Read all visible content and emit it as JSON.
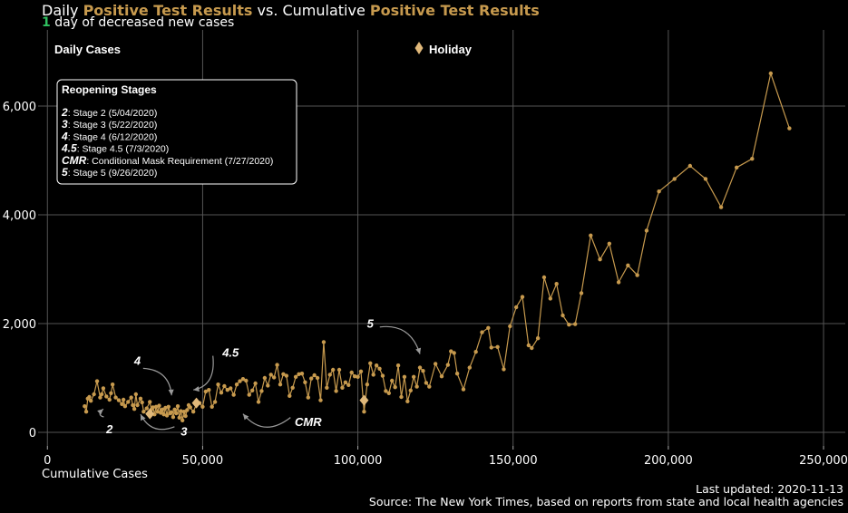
{
  "title": {
    "prefix": "Daily ",
    "highlight1": "Positive Test Results",
    "middle": " vs. Cumulative ",
    "highlight2": "Positive Test Results"
  },
  "subtitle": {
    "count": "1",
    "text": " day of decreased new cases"
  },
  "footer": {
    "updated": "Last updated: 2020-11-13",
    "source": "Source: The New York Times, based on reports from state and local health agencies"
  },
  "colors": {
    "series": "#c79a4e",
    "holiday": "#e0b87a",
    "accent_green": "#2fbf5f",
    "grid": "#555555",
    "background": "#000000"
  },
  "chart_data": {
    "type": "line",
    "xlabel": "Cumulative Cases",
    "ylabel": "Daily Cases",
    "xlim": [
      -3000,
      257000
    ],
    "ylim": [
      -250,
      7400
    ],
    "xticks": [
      0,
      50000,
      100000,
      150000,
      200000,
      250000
    ],
    "xtick_labels": [
      "0",
      "50,000",
      "100,000",
      "150,000",
      "200,000",
      "250,000"
    ],
    "yticks": [
      0,
      2000,
      4000,
      6000
    ],
    "ytick_labels": [
      "0",
      "2,000",
      "4,000",
      "6,000"
    ],
    "grid": true,
    "legend": {
      "label": "Holiday",
      "position": "top-center"
    },
    "series": [
      {
        "x": [
          12000,
          12500,
          13000,
          13500,
          14000,
          15000,
          16000,
          17000,
          17500,
          18000,
          19000,
          20000,
          20500,
          21000,
          22000,
          23000,
          24000,
          24500,
          25000,
          26000,
          27000,
          27500,
          28000,
          28500,
          29000,
          30000,
          30500,
          31000,
          32000,
          33000,
          33500,
          34000,
          34500,
          35000,
          35500,
          36000,
          36500,
          37000,
          37500,
          38000,
          38500,
          39000,
          39500,
          40000,
          40500,
          41000,
          41500,
          42000,
          42500,
          43000,
          43500,
          44000,
          44500,
          45000,
          45500,
          46000,
          47000,
          48000,
          49000,
          50000,
          51000,
          52000,
          53000,
          54000,
          55000,
          56000,
          57000,
          58000,
          59000,
          60000,
          61000,
          62000,
          63000,
          64000,
          65000,
          66000,
          67000,
          68000,
          69000,
          70000,
          71000,
          72000,
          73000,
          74000,
          75000,
          76000,
          77000,
          78000,
          79000,
          80000,
          81000,
          82000,
          83000,
          84000,
          85000,
          86000,
          87000,
          88000,
          89000,
          90000,
          91000,
          92000,
          93000,
          94000,
          95000,
          96000,
          97000,
          98000,
          99000,
          100000,
          101000,
          102000,
          103000,
          104000,
          105000,
          106000,
          107000,
          108000,
          109000,
          110000,
          111000,
          112000,
          113000,
          114000,
          115000,
          116000,
          117000,
          118000,
          119000,
          120000,
          121000,
          122000,
          123000,
          125000,
          127000,
          129000,
          130000,
          131000,
          132000,
          134000,
          136000,
          138000,
          140000,
          142000,
          143000,
          145000,
          147000,
          149000,
          151000,
          153000,
          155000,
          156000,
          158000,
          160000,
          162000,
          164000,
          166000,
          168000,
          170000,
          172000,
          175000,
          178000,
          181000,
          184000,
          187000,
          190000,
          193000,
          197000,
          202000,
          207000,
          212000,
          217000,
          222000,
          227000,
          233000,
          239000
        ],
        "y": [
          480,
          380,
          620,
          650,
          580,
          700,
          940,
          640,
          700,
          810,
          660,
          600,
          720,
          880,
          640,
          590,
          520,
          600,
          480,
          560,
          640,
          500,
          430,
          700,
          500,
          620,
          550,
          380,
          440,
          560,
          420,
          460,
          330,
          470,
          380,
          490,
          360,
          420,
          330,
          450,
          310,
          470,
          350,
          370,
          280,
          420,
          350,
          480,
          270,
          390,
          220,
          380,
          300,
          410,
          500,
          460,
          380,
          520,
          540,
          470,
          750,
          780,
          470,
          560,
          880,
          730,
          850,
          780,
          810,
          690,
          880,
          940,
          980,
          950,
          690,
          770,
          900,
          560,
          760,
          1000,
          860,
          1060,
          1010,
          1240,
          880,
          1070,
          1040,
          670,
          820,
          1020,
          1070,
          1080,
          920,
          640,
          990,
          1050,
          1000,
          590,
          1660,
          820,
          1060,
          1150,
          760,
          1150,
          820,
          920,
          870,
          1100,
          1030,
          1020,
          1120,
          380,
          880,
          1270,
          1060,
          1230,
          1170,
          1040,
          760,
          720,
          950,
          830,
          1230,
          650,
          1020,
          570,
          770,
          1020,
          840,
          1190,
          1130,
          910,
          840,
          1260,
          1030,
          1240,
          1490,
          1460,
          1080,
          790,
          1190,
          1480,
          1840,
          1920,
          1560,
          1570,
          1160,
          1950,
          2300,
          2490,
          1600,
          1550,
          1730,
          2850,
          2460,
          2730,
          2150,
          1980,
          1990,
          2560,
          3620,
          3180,
          3470,
          2760,
          3070,
          2890,
          3710,
          4430,
          4660,
          4900,
          4660,
          4140,
          4870,
          5030,
          6600,
          5590
        ]
      }
    ],
    "holiday_points": [
      {
        "x": 33000,
        "y": 340
      },
      {
        "x": 48000,
        "y": 540
      },
      {
        "x": 102000,
        "y": 590
      }
    ],
    "reopening_stages": {
      "title": "Reopening Stages",
      "items": [
        {
          "code": "2",
          "label": ": Stage 2 (5/04/2020)"
        },
        {
          "code": "3",
          "label": ": Stage 3 (5/22/2020)"
        },
        {
          "code": "4",
          "label": ": Stage 4 (6/12/2020)"
        },
        {
          "code": "4.5",
          "label": ": Stage 4.5 (7/3/2020)"
        },
        {
          "code": "CMR",
          "label": ": Conditional Mask Requirement (7/27/2020)"
        },
        {
          "code": "5",
          "label": ": Stage 5 (9/26/2020)"
        }
      ]
    },
    "annotations": [
      {
        "text": "2",
        "x": 20000,
        "y": 50,
        "tx": 18000,
        "ty": 430
      },
      {
        "text": "3",
        "x": 44000,
        "y": 10,
        "tx": 30000,
        "ty": 330
      },
      {
        "text": "4",
        "x": 29000,
        "y": 1310,
        "tx": 40000,
        "ty": 680
      },
      {
        "text": "4.5",
        "x": 59000,
        "y": 1460,
        "tx": 47000,
        "ty": 780
      },
      {
        "text": "CMR",
        "x": 84000,
        "y": 180,
        "tx": 63000,
        "ty": 340
      },
      {
        "text": "5",
        "x": 104000,
        "y": 1990,
        "tx": 120000,
        "ty": 1440
      }
    ]
  }
}
